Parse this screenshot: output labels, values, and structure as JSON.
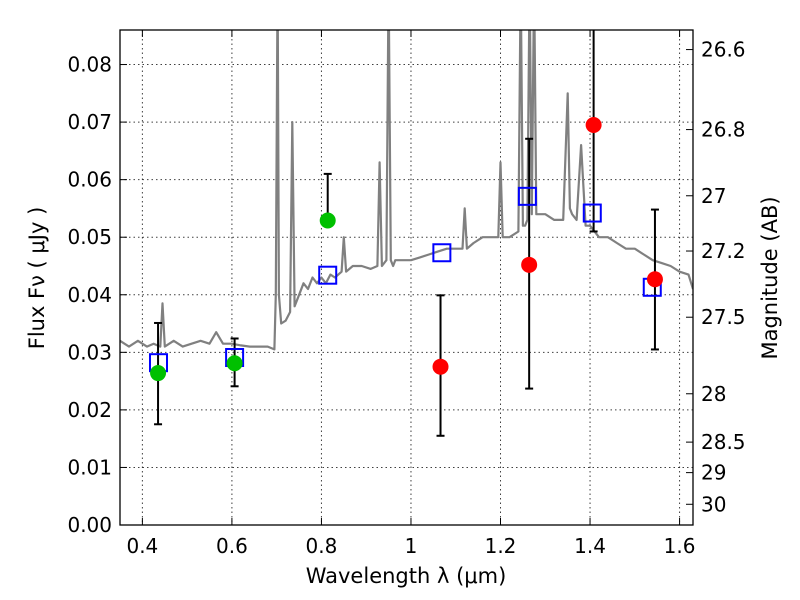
{
  "chart_data": {
    "type": "scatter",
    "xlabel": "Wavelength  λ (μm)",
    "ylabel": "Flux  Fν  ( μJy )",
    "ylabel_right": "Magnitude (AB)",
    "xlim": [
      0.35,
      1.63
    ],
    "ylim": [
      0.0,
      0.086
    ],
    "grid": true,
    "x_ticks": [
      0.4,
      0.6,
      0.8,
      1.0,
      1.2,
      1.4,
      1.6
    ],
    "x_tick_labels": [
      "0.4",
      "0.6",
      "0.8",
      "1",
      "1.2",
      "1.4",
      "1.6"
    ],
    "y_ticks": [
      0.0,
      0.01,
      0.02,
      0.03,
      0.04,
      0.05,
      0.06,
      0.07,
      0.08
    ],
    "y_tick_labels": [
      "0.00",
      "0.01",
      "0.02",
      "0.03",
      "0.04",
      "0.05",
      "0.06",
      "0.07",
      "0.08"
    ],
    "right_ticks": [
      {
        "label": "26.6",
        "flux": 0.0826
      },
      {
        "label": "26.8",
        "flux": 0.0687
      },
      {
        "label": "27",
        "flux": 0.0572
      },
      {
        "label": "27.2",
        "flux": 0.0476
      },
      {
        "label": "27.5",
        "flux": 0.0361
      },
      {
        "label": "28",
        "flux": 0.0228
      },
      {
        "label": "28.5",
        "flux": 0.0144
      },
      {
        "label": "29",
        "flux": 0.0091
      },
      {
        "label": "30",
        "flux": 0.0036
      }
    ],
    "series": [
      {
        "name": "model spectrum",
        "style": "line",
        "color": "#808080",
        "x": [
          0.35,
          0.37,
          0.39,
          0.41,
          0.425,
          0.44,
          0.445,
          0.45,
          0.47,
          0.49,
          0.51,
          0.53,
          0.55,
          0.565,
          0.58,
          0.6,
          0.62,
          0.64,
          0.66,
          0.68,
          0.695,
          0.698,
          0.702,
          0.705,
          0.71,
          0.72,
          0.73,
          0.735,
          0.74,
          0.75,
          0.76,
          0.77,
          0.78,
          0.79,
          0.8,
          0.81,
          0.82,
          0.83,
          0.845,
          0.85,
          0.855,
          0.87,
          0.89,
          0.91,
          0.925,
          0.93,
          0.935,
          0.945,
          0.95,
          0.955,
          0.96,
          0.965,
          0.98,
          1.0,
          1.02,
          1.04,
          1.06,
          1.08,
          1.1,
          1.115,
          1.12,
          1.125,
          1.14,
          1.16,
          1.18,
          1.195,
          1.2,
          1.205,
          1.22,
          1.24,
          1.245,
          1.25,
          1.255,
          1.26,
          1.265,
          1.27,
          1.275,
          1.28,
          1.3,
          1.32,
          1.34,
          1.35,
          1.355,
          1.36,
          1.37,
          1.38,
          1.39,
          1.4,
          1.42,
          1.44,
          1.46,
          1.48,
          1.5,
          1.52,
          1.54,
          1.56,
          1.58,
          1.6,
          1.62,
          1.63
        ],
        "y": [
          0.032,
          0.031,
          0.032,
          0.031,
          0.0315,
          0.031,
          0.0385,
          0.031,
          0.032,
          0.031,
          0.0315,
          0.032,
          0.0315,
          0.0335,
          0.0315,
          0.0315,
          0.0312,
          0.031,
          0.031,
          0.031,
          0.0305,
          0.04,
          0.095,
          0.04,
          0.035,
          0.0355,
          0.037,
          0.07,
          0.038,
          0.04,
          0.042,
          0.041,
          0.043,
          0.042,
          0.043,
          0.042,
          0.0435,
          0.043,
          0.044,
          0.05,
          0.044,
          0.045,
          0.045,
          0.0445,
          0.045,
          0.063,
          0.045,
          0.046,
          0.095,
          0.046,
          0.045,
          0.046,
          0.046,
          0.046,
          0.0465,
          0.047,
          0.0475,
          0.048,
          0.048,
          0.048,
          0.055,
          0.048,
          0.049,
          0.05,
          0.05,
          0.05,
          0.063,
          0.05,
          0.05,
          0.051,
          0.095,
          0.052,
          0.052,
          0.053,
          0.095,
          0.054,
          0.095,
          0.054,
          0.054,
          0.053,
          0.053,
          0.075,
          0.055,
          0.054,
          0.053,
          0.066,
          0.052,
          0.052,
          0.05,
          0.05,
          0.049,
          0.048,
          0.048,
          0.047,
          0.046,
          0.0455,
          0.045,
          0.044,
          0.0435,
          0.041
        ]
      },
      {
        "name": "model photometry",
        "style": "open-square",
        "color": "#0000ff",
        "x": [
          0.436,
          0.606,
          0.814,
          1.069,
          1.26,
          1.405,
          1.539
        ],
        "y": [
          0.0282,
          0.0291,
          0.0434,
          0.0473,
          0.0571,
          0.0542,
          0.0413
        ]
      },
      {
        "name": "green detections",
        "style": "filled-circle",
        "color": "#00c000",
        "x": [
          0.435,
          0.606,
          0.814
        ],
        "y": [
          0.0264,
          0.0281,
          0.0529
        ],
        "err_low": [
          0.0089,
          0.004,
          0.0
        ],
        "err_high": [
          0.0087,
          0.0043,
          0.0081
        ]
      },
      {
        "name": "red detections",
        "style": "filled-circle",
        "color": "#ff0000",
        "x": [
          1.066,
          1.264,
          1.408,
          1.545
        ],
        "y": [
          0.0275,
          0.0452,
          0.0695,
          0.0427
        ],
        "err_low": [
          0.012,
          0.0215,
          0.0185,
          0.0122
        ],
        "err_high": [
          0.0124,
          0.0219,
          0.02,
          0.0121
        ]
      }
    ]
  }
}
